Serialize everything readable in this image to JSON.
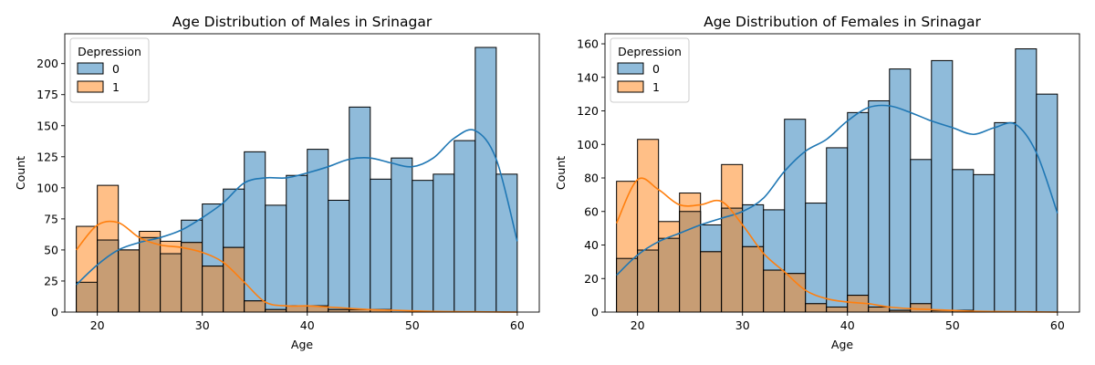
{
  "colors": {
    "class0": "#1f77b4",
    "class1": "#ff7f0e"
  },
  "chart_data": [
    {
      "type": "histogram",
      "title": "Age Distribution of Males in Srinagar",
      "xlabel": "Age",
      "ylabel": "Count",
      "xlim": [
        16.9,
        62.1
      ],
      "ylim": [
        0,
        224
      ],
      "xticks": [
        20,
        30,
        40,
        50,
        60
      ],
      "yticks": [
        0,
        25,
        50,
        75,
        100,
        125,
        150,
        175,
        200
      ],
      "legend": {
        "title": "Depression",
        "placement": "top-left",
        "entries": [
          "0",
          "1"
        ]
      },
      "bin_edges": [
        18,
        20,
        22,
        24,
        26,
        28,
        30,
        32,
        34,
        36,
        38,
        40,
        42,
        44,
        46,
        48,
        50,
        52,
        54,
        56,
        58,
        60
      ],
      "series": [
        {
          "name": "0",
          "counts": [
            24,
            58,
            50,
            60,
            47,
            74,
            87,
            99,
            129,
            86,
            110,
            131,
            90,
            165,
            107,
            124,
            106,
            111,
            138,
            213,
            111
          ]
        },
        {
          "name": "1",
          "counts": [
            69,
            102,
            50,
            65,
            57,
            56,
            37,
            52,
            9,
            2,
            5,
            5,
            2,
            2,
            2,
            0,
            0,
            0,
            0,
            0,
            0
          ]
        }
      ],
      "kde": [
        {
          "name": "0",
          "x": [
            18,
            20,
            22,
            24,
            26,
            28,
            30,
            32,
            34,
            36,
            38,
            40,
            42,
            44,
            46,
            48,
            50,
            52,
            54,
            56,
            58,
            60
          ],
          "y": [
            22,
            38,
            50,
            56,
            60,
            66,
            76,
            88,
            104,
            108,
            108,
            112,
            117,
            123,
            124,
            120,
            117,
            124,
            140,
            146,
            123,
            57
          ]
        },
        {
          "name": "1",
          "x": [
            18,
            20,
            22,
            24,
            26,
            28,
            30,
            32,
            34,
            36,
            38,
            40,
            42,
            44,
            46,
            48,
            50,
            52,
            54,
            56,
            58,
            60
          ],
          "y": [
            50,
            70,
            72,
            60,
            54,
            52,
            48,
            40,
            24,
            8,
            5,
            5,
            4,
            3,
            2,
            1.5,
            1,
            0.5,
            0.3,
            0.2,
            0.1,
            0
          ]
        }
      ]
    },
    {
      "type": "histogram",
      "title": "Age Distribution of Females in Srinagar",
      "xlabel": "Age",
      "ylabel": "Count",
      "xlim": [
        16.9,
        62.1
      ],
      "ylim": [
        0,
        166
      ],
      "xticks": [
        20,
        30,
        40,
        50,
        60
      ],
      "yticks": [
        0,
        20,
        40,
        60,
        80,
        100,
        120,
        140,
        160
      ],
      "legend": {
        "title": "Depression",
        "placement": "top-left",
        "entries": [
          "0",
          "1"
        ]
      },
      "bin_edges": [
        18,
        20,
        22,
        24,
        26,
        28,
        30,
        32,
        34,
        36,
        38,
        40,
        42,
        44,
        46,
        48,
        50,
        52,
        54,
        56,
        58,
        60
      ],
      "series": [
        {
          "name": "0",
          "counts": [
            32,
            37,
            44,
            60,
            52,
            62,
            64,
            61,
            115,
            65,
            98,
            119,
            126,
            145,
            91,
            150,
            85,
            82,
            113,
            157,
            130
          ]
        },
        {
          "name": "1",
          "counts": [
            78,
            103,
            54,
            71,
            36,
            88,
            39,
            25,
            23,
            5,
            3,
            10,
            3,
            1,
            5,
            1,
            1,
            0,
            0,
            0,
            0
          ]
        }
      ],
      "kde": [
        {
          "name": "0",
          "x": [
            18,
            20,
            22,
            24,
            26,
            28,
            30,
            32,
            34,
            36,
            38,
            40,
            42,
            44,
            46,
            48,
            50,
            52,
            54,
            56,
            58,
            60
          ],
          "y": [
            22,
            34,
            42,
            47,
            52,
            56,
            60,
            68,
            84,
            96,
            103,
            114,
            122,
            123,
            119,
            114,
            110,
            106,
            110,
            112,
            95,
            59
          ]
        },
        {
          "name": "1",
          "x": [
            18,
            20,
            22,
            24,
            26,
            28,
            30,
            32,
            34,
            36,
            38,
            40,
            42,
            44,
            46,
            48,
            50,
            52,
            54,
            56,
            58,
            60
          ],
          "y": [
            53,
            79,
            73,
            64,
            64,
            66,
            52,
            35,
            24,
            13,
            8,
            6,
            5,
            3,
            2,
            1.5,
            1,
            0.5,
            0.3,
            0.2,
            0.1,
            0
          ]
        }
      ]
    }
  ]
}
